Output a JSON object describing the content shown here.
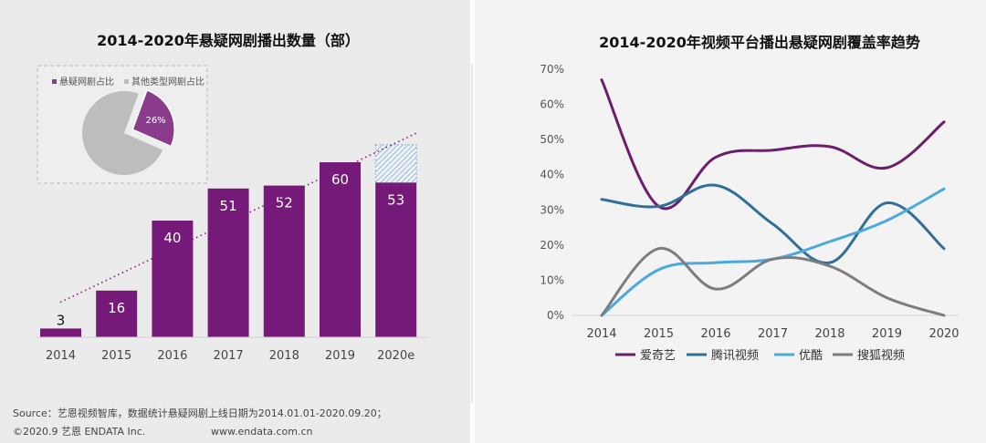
{
  "chart_data": [
    {
      "type": "bar",
      "title": "2014-2020年悬疑网剧播出数量（部）",
      "categories": [
        "2014",
        "2015",
        "2016",
        "2017",
        "2018",
        "2019",
        "2020e"
      ],
      "values": [
        3,
        16,
        40,
        51,
        52,
        60,
        53
      ],
      "projected_total_2020e": 66,
      "ylim": [
        0,
        70
      ],
      "bar_color": "#751a78",
      "projection_color": "#7fa6c9",
      "trend_color": "#7a1f73",
      "inset_pie": {
        "type": "pie",
        "legend": [
          "悬疑网剧占比",
          "其他类型网剧占比"
        ],
        "values": [
          26,
          74
        ],
        "label": "26%",
        "colors": [
          "#8a3b8c",
          "#bdbdbd"
        ]
      }
    },
    {
      "type": "line",
      "title": "2014-2020年视频平台播出悬疑网剧覆盖率趋势",
      "x": [
        "2014",
        "2015",
        "2016",
        "2017",
        "2018",
        "2019",
        "2020"
      ],
      "ylim": [
        0,
        70
      ],
      "yticks": [
        "0%",
        "10%",
        "20%",
        "30%",
        "40%",
        "50%",
        "60%",
        "70%"
      ],
      "series": [
        {
          "name": "爱奇艺",
          "color": "#6a1e6b",
          "values": [
            67,
            31,
            45,
            47,
            48,
            42,
            55
          ]
        },
        {
          "name": "腾讯视频",
          "color": "#2f6f98",
          "values": [
            33,
            31,
            37,
            26,
            15,
            32,
            19
          ]
        },
        {
          "name": "优酷",
          "color": "#4aa9df",
          "values": [
            0,
            13,
            15,
            16,
            21,
            27,
            36
          ]
        },
        {
          "name": "搜狐视频",
          "color": "#7d7d7d",
          "values": [
            0,
            19,
            7.5,
            16,
            14,
            5,
            0
          ]
        }
      ]
    }
  ],
  "footer": {
    "source": "Source：艺恩视频智库，数据统计悬疑网剧上线日期为2014.01.01-2020.09.20；",
    "copyright": "©2020.9 艺恩 ENDATA Inc.",
    "website": "www.endata.com.cn"
  }
}
